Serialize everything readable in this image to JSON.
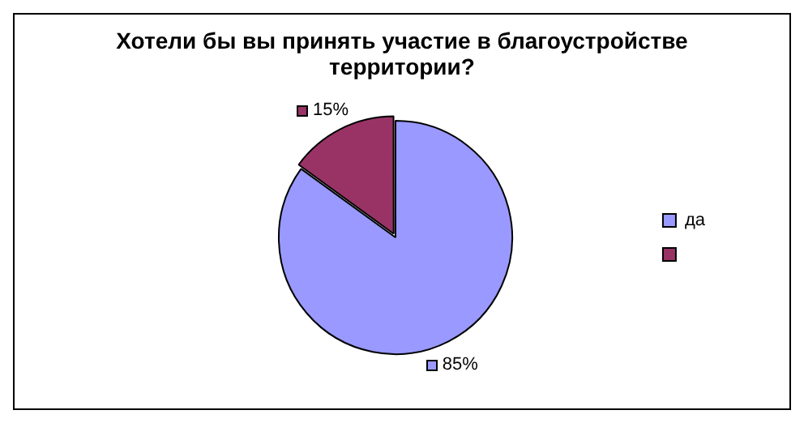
{
  "chart_data": {
    "type": "pie",
    "title": "Хотели бы вы принять участие в благоустройстве территории?",
    "categories": [
      "да",
      null
    ],
    "values": [
      85,
      15
    ],
    "colors": [
      "#9999ff",
      "#993366"
    ],
    "value_labels": [
      "85%",
      "15%"
    ],
    "legend": "right"
  }
}
